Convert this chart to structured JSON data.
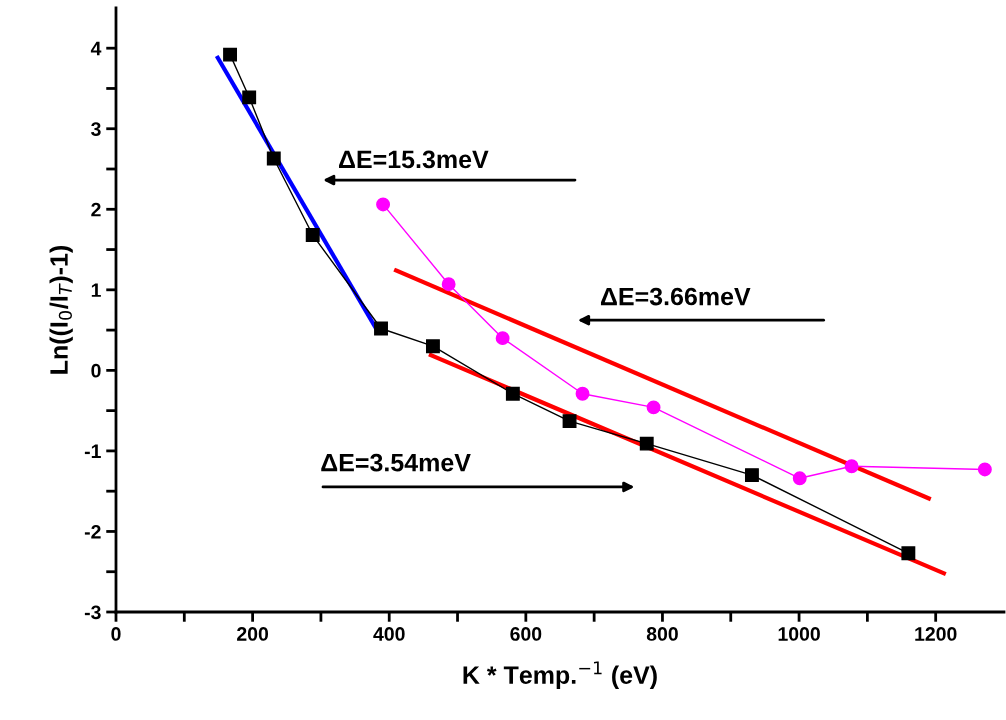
{
  "chart_data": {
    "type": "line",
    "xlabel": "K * Temp.$^{−1}$ (eV)",
    "ylabel": "Ln((I$_{0}$/I$_{T}$)-1)",
    "xlim": [
      0,
      1300
    ],
    "ylim": [
      -3,
      4.5
    ],
    "xticks": [
      0,
      {
        "value": 100,
        "label": null
      },
      200,
      {
        "value": 300,
        "label": null
      },
      400,
      {
        "value": 500,
        "label": null
      },
      600,
      {
        "value": 700,
        "label": null
      },
      800,
      {
        "value": 900,
        "label": null
      },
      1000,
      {
        "value": 1100,
        "label": null
      },
      1200
    ],
    "yticks": [
      -3,
      {
        "value": -2.5,
        "label": null
      },
      -2,
      {
        "value": -1.5,
        "label": null
      },
      -1,
      {
        "value": -0.5,
        "label": null
      },
      0,
      {
        "value": 0.5,
        "label": null
      },
      1,
      {
        "value": 1.5,
        "label": null
      },
      2,
      {
        "value": 2.5,
        "label": null
      },
      3,
      {
        "value": 3.5,
        "label": null
      },
      4
    ],
    "grid": false,
    "series": [
      {
        "color": "#000000",
        "marker": "square",
        "x": [
          167,
          195,
          231,
          288,
          388,
          464,
          581,
          664,
          777,
          931,
          1160
        ],
        "values": [
          3.92,
          3.39,
          2.63,
          1.68,
          0.52,
          0.3,
          -0.29,
          -0.63,
          -0.91,
          -1.3,
          -2.27
        ]
      },
      {
        "color": "#ff00ff",
        "marker": "circle",
        "x": [
          391,
          487,
          566,
          683,
          787,
          1001,
          1077,
          1272
        ],
        "values": [
          2.06,
          1.07,
          0.4,
          -0.29,
          -0.46,
          -1.34,
          -1.19,
          -1.23
        ]
      },
      {
        "color": "#0000ff",
        "marker": "none",
        "x": [
          149,
          380
        ],
        "values": [
          3.88,
          0.53
        ]
      },
      {
        "color": "#ff0000",
        "marker": "none",
        "x": [
          410,
          1190
        ],
        "values": [
          1.24,
          -1.59
        ]
      },
      {
        "color": "#ff0000",
        "marker": "none",
        "x": [
          461,
          1212
        ],
        "values": [
          0.19,
          -2.52
        ]
      }
    ],
    "annotations": [
      "ΔE=15.3meV",
      "ΔE=3.66meV",
      "ΔE=3.54meV"
    ]
  }
}
